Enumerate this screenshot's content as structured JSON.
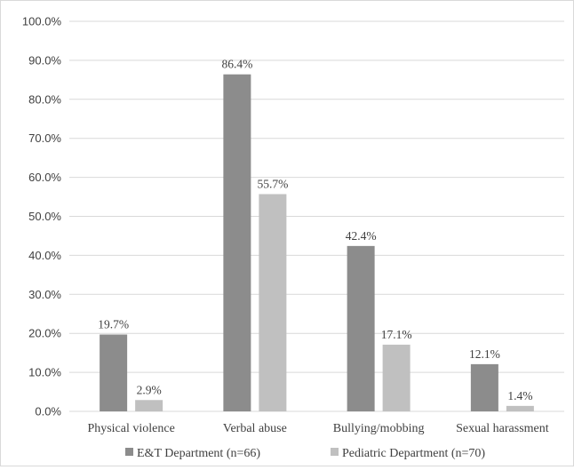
{
  "chart_data": {
    "type": "bar",
    "categories": [
      "Physical violence",
      "Verbal abuse",
      "Bullying/mobbing",
      "Sexual harassment"
    ],
    "series": [
      {
        "name": "E&T Department (n=66)",
        "values": [
          19.7,
          86.4,
          42.4,
          12.1
        ],
        "labels": [
          "19.7%",
          "86.4%",
          "42.4%",
          "12.1%"
        ],
        "color": "#8c8c8c"
      },
      {
        "name": "Pediatric Department (n=70)",
        "values": [
          2.9,
          55.7,
          17.1,
          1.4
        ],
        "labels": [
          "2.9%",
          "55.7%",
          "17.1%",
          "1.4%"
        ],
        "color": "#c0c0c0"
      }
    ],
    "yticks": [
      "0.0%",
      "10.0%",
      "20.0%",
      "30.0%",
      "40.0%",
      "50.0%",
      "60.0%",
      "70.0%",
      "80.0%",
      "90.0%",
      "100.0%"
    ],
    "ylim": [
      0,
      100
    ],
    "grid": true,
    "gridline_color": "#d9d9d9",
    "legend_position": "bottom"
  }
}
